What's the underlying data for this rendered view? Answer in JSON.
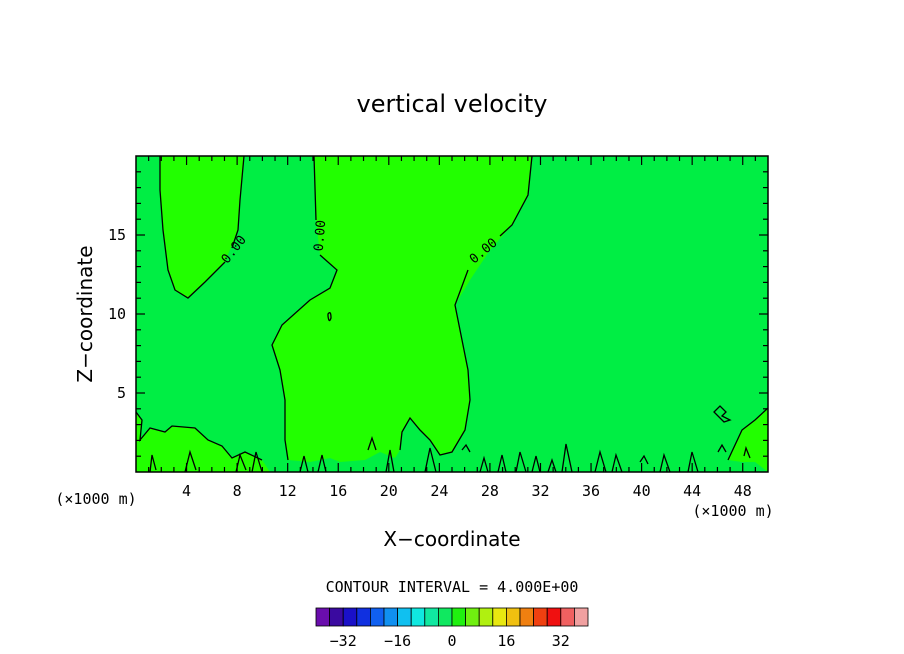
{
  "chart_data": {
    "type": "contour",
    "title": "vertical velocity",
    "xlabel": "X−coordinate",
    "ylabel": "Z−coordinate",
    "x_unit_left": "(×1000 m)",
    "x_unit_right": "(×1000 m)",
    "xlim": [
      0,
      50
    ],
    "ylim": [
      0,
      20
    ],
    "x_ticks": [
      4,
      8,
      12,
      16,
      20,
      24,
      28,
      32,
      36,
      40,
      44,
      48
    ],
    "y_ticks": [
      5,
      10,
      15
    ],
    "contour_labels": [
      "0.00",
      "0.00",
      "0.00"
    ],
    "contour_interval_text": "CONTOUR INTERVAL = 4.000E+00",
    "colorbar": {
      "tick_labels": [
        "−32",
        "−16",
        "0",
        "16",
        "32"
      ],
      "tick_values": [
        -32,
        -16,
        0,
        16,
        32
      ],
      "colors": [
        "#6a0dad",
        "#3a0aa0",
        "#1a10c8",
        "#1030e0",
        "#1060f0",
        "#1090f0",
        "#10c0f0",
        "#10e8e0",
        "#10e8a0",
        "#10e860",
        "#20f010",
        "#70f010",
        "#b0f010",
        "#e8e810",
        "#f0c010",
        "#f08010",
        "#f04010",
        "#f01010",
        "#f06060",
        "#f0a0a0"
      ],
      "zero_color": "#22ff00",
      "neg_color": "#00ee44"
    }
  }
}
